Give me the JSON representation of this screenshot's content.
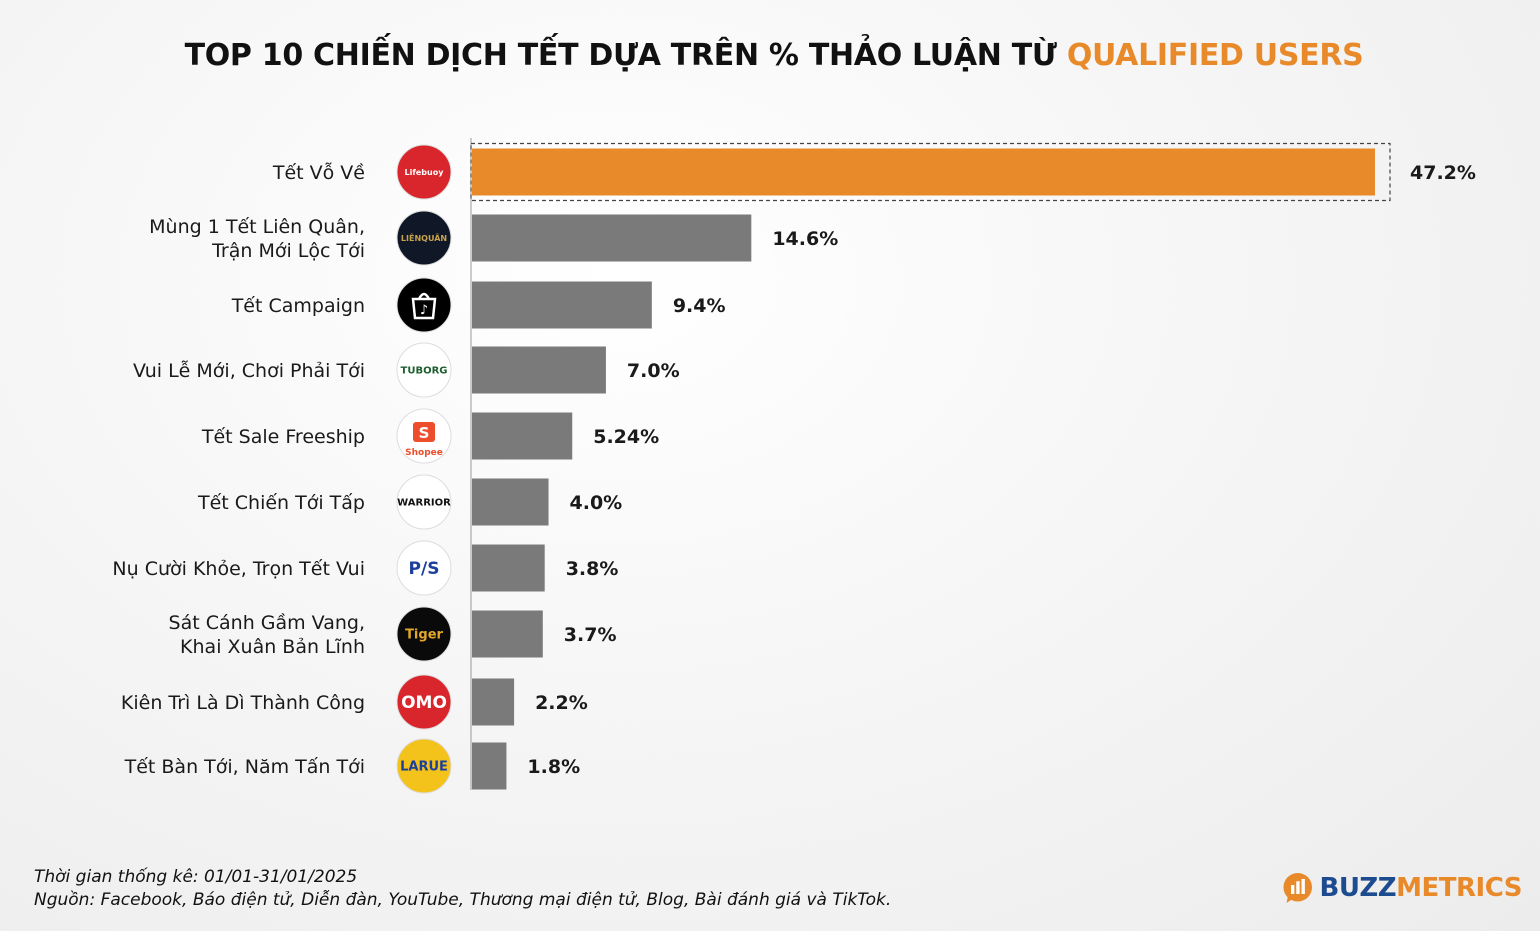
{
  "title": {
    "main": "TOP 10 CHIẾN DỊCH TẾT DỰA TRÊN % THẢO LUẬN TỪ",
    "accent": "QUALIFIED USERS"
  },
  "colors": {
    "highlight": "#e8892a",
    "bar": "#7a7a7a",
    "text": "#111111"
  },
  "chart_data": {
    "type": "bar",
    "orientation": "horizontal",
    "categories": [
      [
        "Tết Vỗ Về"
      ],
      [
        "Mùng 1 Tết Liên Quân,",
        "Trận Mới Lộc Tới"
      ],
      [
        "Tết Campaign"
      ],
      [
        "Vui Lễ Mới, Chơi Phải Tới"
      ],
      [
        "Tết Sale Freeship"
      ],
      [
        "Tết Chiến Tới Tấp"
      ],
      [
        "Nụ Cười Khỏe, Trọn Tết Vui"
      ],
      [
        "Sát Cánh Gầm Vang,",
        "Khai Xuân Bản Lĩnh"
      ],
      [
        "Kiên Trì Là Dì Thành Công"
      ],
      [
        "Tết Bàn Tới, Năm Tấn Tới"
      ]
    ],
    "values": [
      47.2,
      14.6,
      9.4,
      7.0,
      5.24,
      4.0,
      3.8,
      3.7,
      2.2,
      1.8
    ],
    "value_labels": [
      "47.2%",
      "14.6%",
      "9.4%",
      "7.0%",
      "5.24%",
      "4.0%",
      "3.8%",
      "3.7%",
      "2.2%",
      "1.8%"
    ],
    "highlight_index": 0,
    "logos": [
      {
        "icon": "lifebuoy-logo-icon",
        "text": "Lifebuoy",
        "bg": "#d8262c",
        "fg": "#ffffff"
      },
      {
        "icon": "lien-quan-logo-icon",
        "text": "LIÊNQUÂN",
        "bg": "#101828",
        "fg": "#c8a24a"
      },
      {
        "icon": "tiktok-shop-logo-icon",
        "text": "",
        "bg": "#000000",
        "fg": "#ffffff"
      },
      {
        "icon": "tuborg-logo-icon",
        "text": "TUBORG",
        "bg": "#ffffff",
        "fg": "#1e5e2e"
      },
      {
        "icon": "shopee-logo-icon",
        "text": "Shopee",
        "bg": "#ffffff",
        "fg": "#ee4d2d"
      },
      {
        "icon": "warrior-logo-icon",
        "text": "WARRIOR",
        "bg": "#ffffff",
        "fg": "#111111"
      },
      {
        "icon": "ps-logo-icon",
        "text": "P/S",
        "bg": "#ffffff",
        "fg": "#1d3f9c"
      },
      {
        "icon": "tiger-logo-icon",
        "text": "Tiger",
        "bg": "#0a0a0a",
        "fg": "#e3a82b"
      },
      {
        "icon": "omo-logo-icon",
        "text": "OMO",
        "bg": "#d8262c",
        "fg": "#ffffff"
      },
      {
        "icon": "larue-logo-icon",
        "text": "LARUE",
        "bg": "#f3c21b",
        "fg": "#1d3f9c"
      }
    ],
    "xlabel": "",
    "ylabel": "",
    "xlim": [
      0,
      47.2
    ],
    "grid": false
  },
  "footer": {
    "period": "Thời gian thống kê: 01/01-31/01/2025",
    "source": "Nguồn: Facebook, Báo điện tử, Diễn đàn, YouTube, Thương mại điện tử, Blog, Bài đánh giá và TikTok."
  },
  "brand": {
    "part1": "BUZZ",
    "part2": "METRICS",
    "icon": "buzzmetrics-logo-icon"
  }
}
